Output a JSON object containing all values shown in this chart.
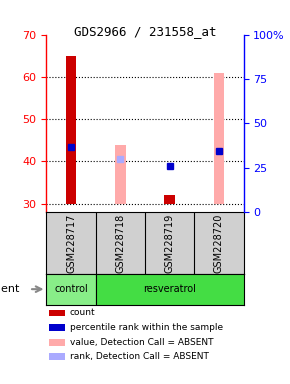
{
  "title": "GDS2966 / 231558_at",
  "samples": [
    "GSM228717",
    "GSM228718",
    "GSM228719",
    "GSM228720"
  ],
  "groups": [
    "control",
    "resveratrol",
    "resveratrol",
    "resveratrol"
  ],
  "ylim_left": [
    28,
    70
  ],
  "yticks_left": [
    30,
    40,
    50,
    60,
    70
  ],
  "yticks_right": [
    0,
    25,
    50,
    75,
    100
  ],
  "ytick_labels_right": [
    "0",
    "25",
    "50",
    "75",
    "100%"
  ],
  "red_bar_bottoms": [
    30,
    30,
    30,
    30
  ],
  "red_bar_tops": [
    65,
    30,
    32,
    30
  ],
  "pink_bar_bottoms": [
    30,
    30,
    30,
    30
  ],
  "pink_bar_tops": [
    30,
    44,
    30,
    61
  ],
  "blue_square_y": [
    43.5,
    null,
    39,
    42.5
  ],
  "light_blue_square_y": [
    null,
    40.5,
    null,
    null
  ],
  "red_color": "#cc0000",
  "blue_color": "#0000cc",
  "pink_color": "#ffaaaa",
  "light_blue_color": "#aaaaff",
  "ctrl_color": "#88ee88",
  "resv_color": "#44dd44",
  "legend_items": [
    {
      "color": "#cc0000",
      "label": "count"
    },
    {
      "color": "#0000cc",
      "label": "percentile rank within the sample"
    },
    {
      "color": "#ffaaaa",
      "label": "value, Detection Call = ABSENT"
    },
    {
      "color": "#aaaaff",
      "label": "rank, Detection Call = ABSENT"
    }
  ],
  "agent_label": "agent",
  "gray_bg": "#d0d0d0"
}
